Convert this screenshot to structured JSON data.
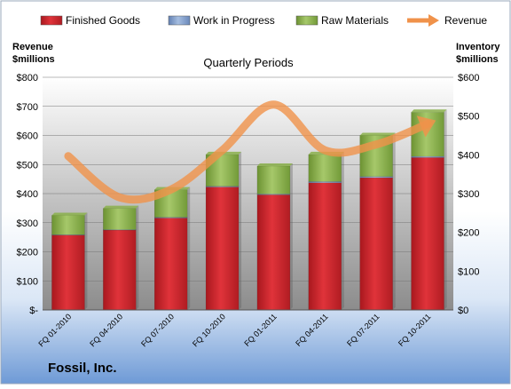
{
  "chart_data": {
    "type": "bar",
    "subtitle": "Quarterly Periods",
    "company": "Fossil, Inc.",
    "left_axis": {
      "label_line1": "Revenue",
      "label_line2": "$millions",
      "ylim": [
        0,
        800
      ],
      "ticks": [
        0,
        100,
        200,
        300,
        400,
        500,
        600,
        700,
        800
      ],
      "tick_labels": [
        "$-",
        "$100",
        "$200",
        "$300",
        "$400",
        "$500",
        "$600",
        "$700",
        "$800"
      ]
    },
    "right_axis": {
      "label_line1": "Inventory",
      "label_line2": "$millions",
      "ylim": [
        0,
        600
      ],
      "ticks": [
        0,
        100,
        200,
        300,
        400,
        500,
        600
      ],
      "tick_labels": [
        "$0",
        "$100",
        "$200",
        "$300",
        "$400",
        "$500",
        "$600"
      ]
    },
    "categories": [
      "FQ 01-2010",
      "FQ 04-2010",
      "FQ 07-2010",
      "FQ 10-2010",
      "FQ 01-2011",
      "FQ 04-2011",
      "FQ 07-2011",
      "FQ 10-2011"
    ],
    "series": [
      {
        "name": "Finished Goods",
        "axis": "right",
        "color": "#cc2228",
        "values": [
          193,
          206,
          237,
          317,
          297,
          328,
          341,
          393
        ]
      },
      {
        "name": "Work in Progress",
        "axis": "right",
        "color": "#7e9ccb",
        "values": [
          1,
          1,
          2,
          2,
          2,
          3,
          3,
          3
        ]
      },
      {
        "name": "Raw Materials",
        "axis": "right",
        "color": "#8ab04a",
        "values": [
          50,
          55,
          71,
          82,
          72,
          70,
          106,
          114
        ]
      },
      {
        "name": "Revenue",
        "axis": "left",
        "type": "line",
        "color": "#f0924a",
        "values": [
          529,
          387,
          414,
          549,
          706,
          549,
          569,
          640
        ]
      }
    ],
    "legend_position": "top",
    "grid": true
  }
}
